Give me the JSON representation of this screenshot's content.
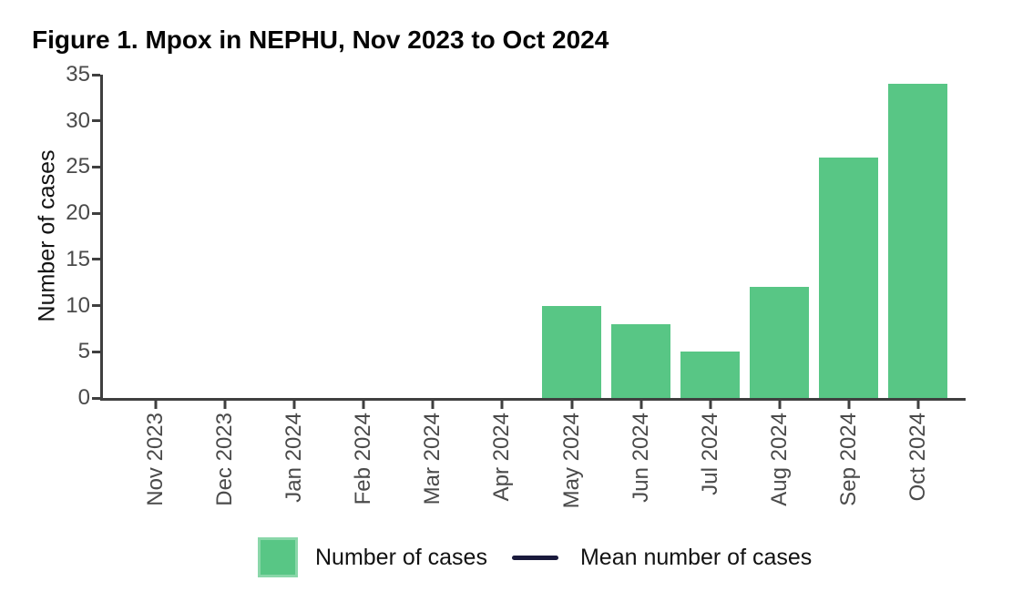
{
  "chart_data": {
    "type": "bar",
    "title": "Figure 1. Mpox in NEPHU, Nov 2023 to Oct 2024",
    "categories": [
      "Nov 2023",
      "Dec 2023",
      "Jan 2024",
      "Feb 2024",
      "Mar 2024",
      "Apr 2024",
      "May 2024",
      "Jun 2024",
      "Jul 2024",
      "Aug 2024",
      "Sep 2024",
      "Oct 2024"
    ],
    "values": [
      0,
      0,
      0,
      0,
      0,
      0,
      10,
      8,
      5,
      12,
      26,
      34
    ],
    "xlabel": "",
    "ylabel": "Number of cases",
    "ylim": [
      0,
      35
    ],
    "yticks": [
      0,
      5,
      10,
      15,
      20,
      25,
      30,
      35
    ],
    "grid": false,
    "legend_position": "bottom",
    "colors": {
      "bar": "#58C685",
      "axis": "#3f3f3f",
      "tick_label": "#4a4a4a",
      "mean_line": "#1a1a3c"
    },
    "legend": [
      {
        "marker": "square",
        "label": "Number of cases",
        "color": "#58C685"
      },
      {
        "marker": "line",
        "label": "Mean number of cases",
        "color": "#1a1a3c"
      }
    ]
  }
}
